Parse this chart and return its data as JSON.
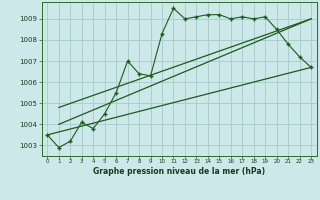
{
  "title": "Graphe pression niveau de la mer (hPa)",
  "bg_color": "#cce8e8",
  "grid_color": "#aacfcf",
  "line_color": "#1a5c1a",
  "x_data": [
    0,
    1,
    2,
    3,
    4,
    5,
    6,
    7,
    8,
    9,
    10,
    11,
    12,
    13,
    14,
    15,
    16,
    17,
    18,
    19,
    20,
    21,
    22,
    23
  ],
  "y_data": [
    1003.5,
    1002.9,
    1003.2,
    1004.1,
    1003.8,
    1004.5,
    1005.5,
    1007.0,
    1006.4,
    1006.3,
    1008.3,
    1009.5,
    1009.0,
    1009.1,
    1009.2,
    1009.2,
    1009.0,
    1009.1,
    1009.0,
    1009.1,
    1008.5,
    1007.8,
    1007.2,
    1006.7
  ],
  "trend1_x": [
    0,
    23
  ],
  "trend1_y": [
    1003.5,
    1006.7
  ],
  "trend2_x": [
    1,
    23
  ],
  "trend2_y": [
    1004.0,
    1009.0
  ],
  "trend3_x": [
    1,
    23
  ],
  "trend3_y": [
    1004.8,
    1009.0
  ],
  "ylim": [
    1002.5,
    1009.8
  ],
  "xlim": [
    -0.5,
    23.5
  ],
  "yticks": [
    1003,
    1004,
    1005,
    1006,
    1007,
    1008,
    1009
  ],
  "xticks": [
    0,
    1,
    2,
    3,
    4,
    5,
    6,
    7,
    8,
    9,
    10,
    11,
    12,
    13,
    14,
    15,
    16,
    17,
    18,
    19,
    20,
    21,
    22,
    23
  ],
  "xtick_labels": [
    "0",
    "1",
    "2",
    "3",
    "4",
    "5",
    "6",
    "7",
    "8",
    "9",
    "10",
    "11",
    "12",
    "13",
    "14",
    "15",
    "16",
    "17",
    "18",
    "19",
    "20",
    "21",
    "22",
    "23"
  ]
}
